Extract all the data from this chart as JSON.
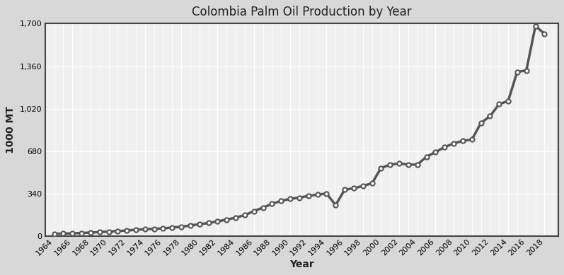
{
  "title": "Colombia Palm Oil Production by Year",
  "xlabel": "Year",
  "ylabel": "1000 MT",
  "years": [
    1964,
    1965,
    1966,
    1967,
    1968,
    1969,
    1970,
    1971,
    1972,
    1973,
    1974,
    1975,
    1976,
    1977,
    1978,
    1979,
    1980,
    1981,
    1982,
    1983,
    1984,
    1985,
    1986,
    1987,
    1988,
    1989,
    1990,
    1991,
    1992,
    1993,
    1994,
    1995,
    1996,
    1997,
    1998,
    1999,
    2000,
    2001,
    2002,
    2003,
    2004,
    2005,
    2006,
    2007,
    2008,
    2009,
    2010,
    2011,
    2012,
    2013,
    2014,
    2015,
    2016,
    2017,
    2018
  ],
  "values": [
    18,
    20,
    22,
    25,
    28,
    32,
    36,
    40,
    45,
    50,
    55,
    58,
    62,
    68,
    75,
    85,
    95,
    105,
    118,
    132,
    148,
    168,
    200,
    228,
    258,
    282,
    298,
    308,
    322,
    332,
    340,
    248,
    372,
    382,
    402,
    422,
    545,
    572,
    582,
    572,
    572,
    635,
    672,
    712,
    742,
    762,
    772,
    905,
    960,
    1055,
    1082,
    1315,
    1325,
    1680,
    1620
  ],
  "ylim": [
    0,
    1700
  ],
  "yticks": [
    0,
    340,
    680,
    1020,
    1360,
    1700
  ],
  "ytick_labels": [
    "0",
    "340",
    "680",
    "1,020",
    "1,360",
    "1,700"
  ],
  "line_color": "#555555",
  "marker_face": "#ffffff",
  "marker_edge": "#555555",
  "outer_bg_color": "#d8d8d8",
  "plot_bg_color": "#f0f0f0",
  "grid_color": "#ffffff",
  "spine_color": "#444444",
  "title_fontsize": 12,
  "axis_label_fontsize": 10,
  "tick_fontsize": 8
}
